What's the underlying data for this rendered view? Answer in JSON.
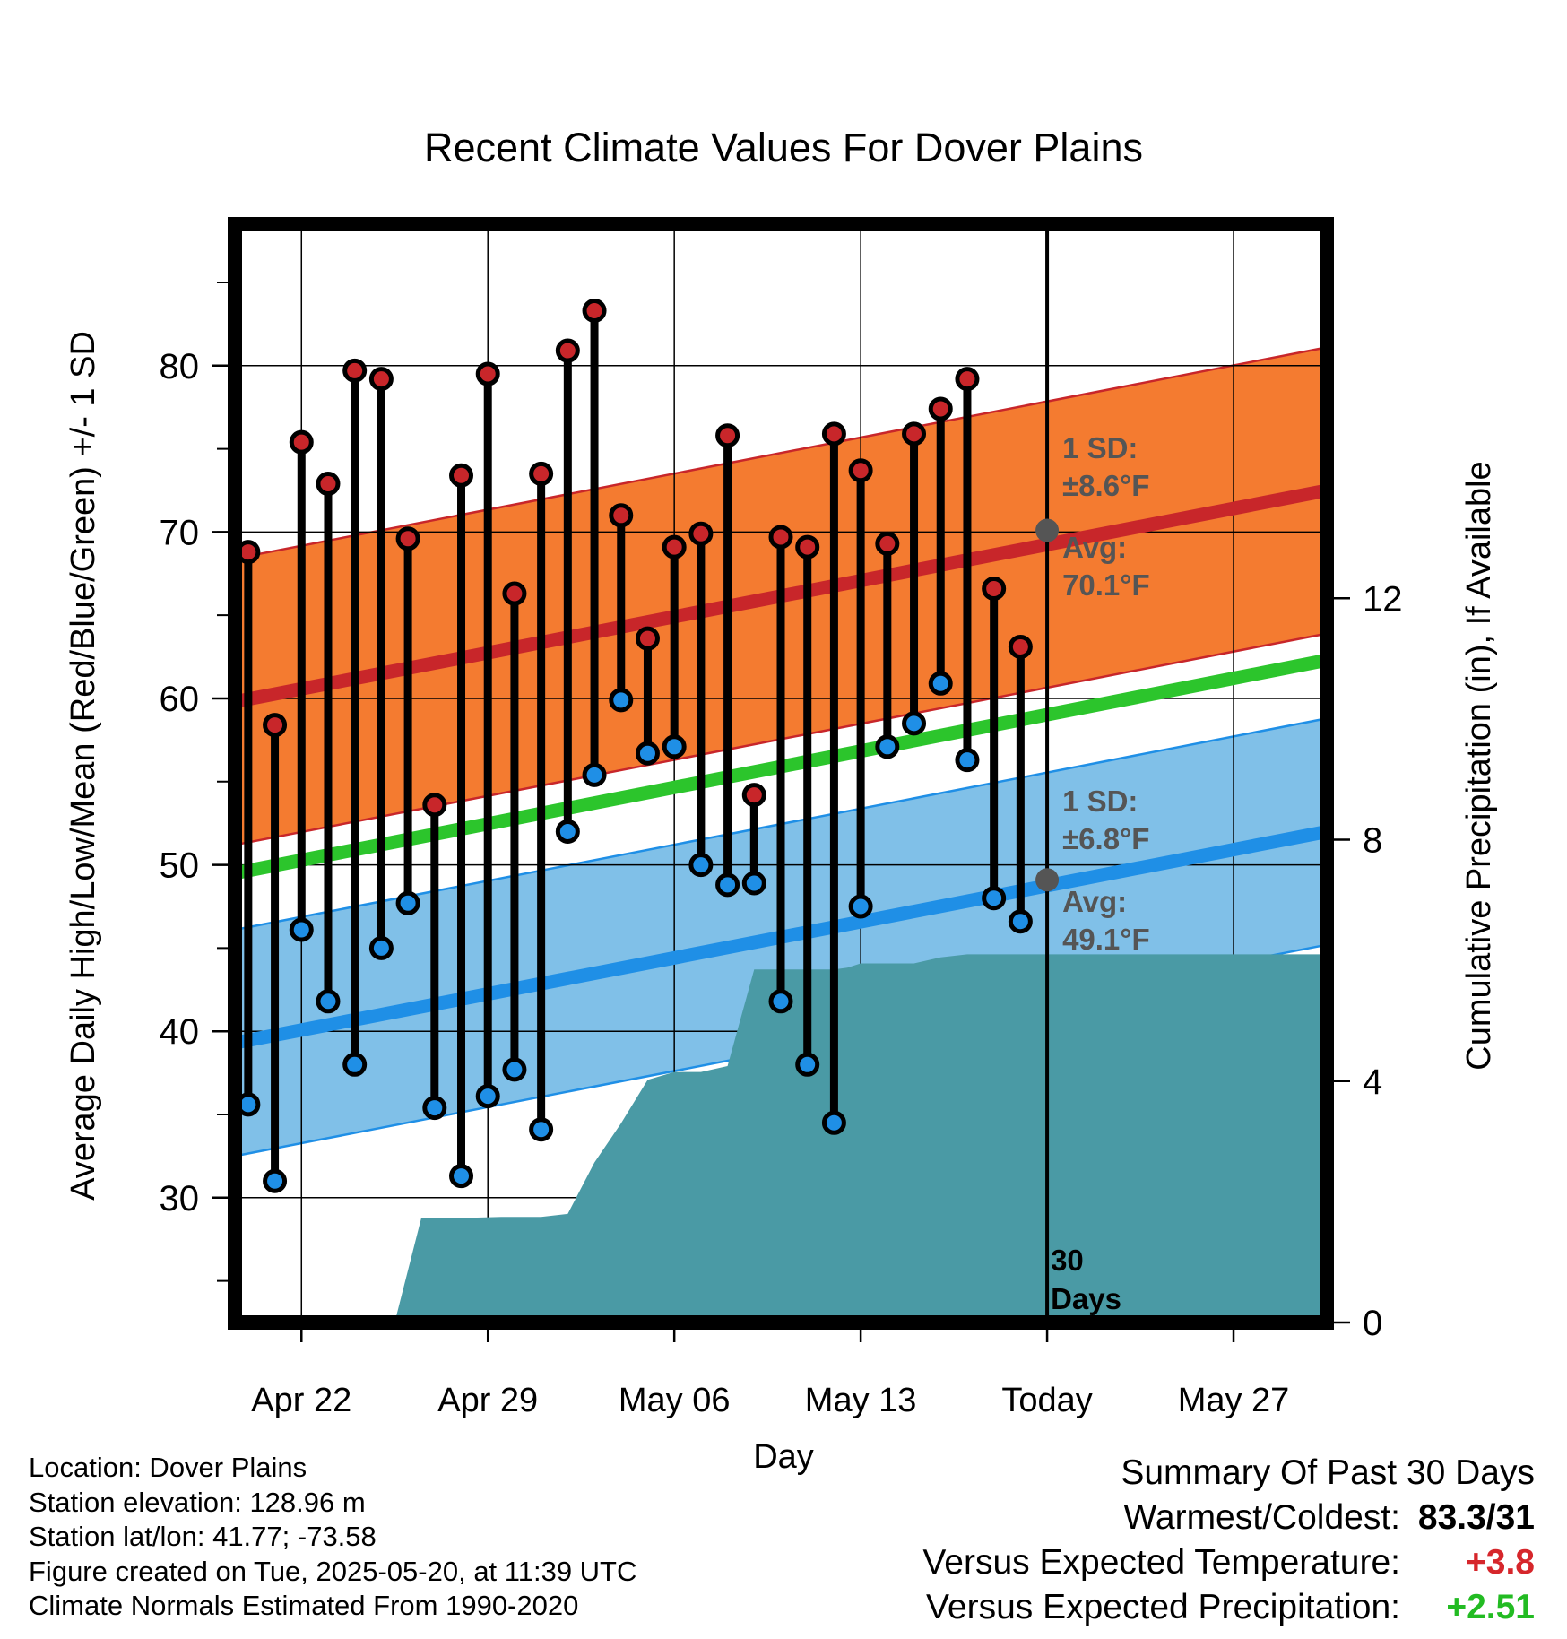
{
  "chart_data": {
    "type": "line",
    "title": "Recent Climate Values For Dover Plains",
    "xlabel": "Day",
    "ylabel": "Average Daily High/Low/Mean (Red/Blue/Green) +/- 1 SD",
    "y2label": "Cumulative Precipitation (in), If Available",
    "x_ticks": [
      "Apr 22",
      "Apr 29",
      "May 06",
      "May 13",
      "Today",
      "May 27"
    ],
    "x_tick_day_offsets": [
      3,
      10,
      17,
      24,
      31,
      38
    ],
    "x_range_days": [
      0.5,
      41.5
    ],
    "today_day_offset": 31,
    "ylim": [
      22.5,
      88.5
    ],
    "y_ticks": [
      30,
      40,
      50,
      60,
      70,
      80
    ],
    "y2lim": [
      0,
      18.2
    ],
    "y2_ticks": [
      0,
      4,
      8,
      12
    ],
    "days": [
      1,
      2,
      3,
      4,
      5,
      6,
      7,
      8,
      9,
      10,
      11,
      12,
      13,
      14,
      15,
      16,
      17,
      18,
      19,
      20,
      21,
      22,
      23,
      24,
      25,
      26,
      27,
      28,
      29,
      30
    ],
    "highs": [
      68.8,
      58.4,
      75.4,
      72.9,
      79.7,
      79.2,
      69.6,
      53.6,
      73.4,
      79.5,
      66.3,
      73.5,
      80.9,
      83.3,
      71.0,
      63.6,
      69.1,
      69.9,
      75.8,
      54.2,
      69.7,
      69.1,
      75.9,
      73.7,
      69.3,
      75.9,
      77.4,
      79.2,
      66.6,
      63.1
    ],
    "lows": [
      35.6,
      31.0,
      46.1,
      41.8,
      38.0,
      45.0,
      47.7,
      35.4,
      31.3,
      36.1,
      37.7,
      34.1,
      52.0,
      55.4,
      59.9,
      56.7,
      57.1,
      50.0,
      48.8,
      48.9,
      41.8,
      38.0,
      34.5,
      47.5,
      57.1,
      58.5,
      60.9,
      56.3,
      48.0,
      46.6
    ],
    "normal_high": {
      "start": 59.8,
      "end": 72.5,
      "sd": 8.6
    },
    "normal_low": {
      "start": 39.3,
      "end": 52.0,
      "sd": 6.8
    },
    "normal_mean": {
      "start": 49.5,
      "end": 62.3
    },
    "precip_cumulative": {
      "day": [
        0.5,
        6.5,
        7.5,
        9.0,
        10.5,
        12.0,
        13.0,
        14.0,
        15.0,
        16.0,
        17.0,
        18.0,
        19.0,
        20.0,
        21.0,
        22.0,
        22.5,
        23.0,
        23.5,
        24.0,
        25.0,
        26.0,
        27.0,
        28.0,
        29.0,
        30.0,
        31.0,
        41.5
      ],
      "inches": [
        0,
        0,
        1.73,
        1.73,
        1.75,
        1.75,
        1.8,
        2.65,
        3.3,
        4.02,
        4.15,
        4.15,
        4.25,
        5.85,
        5.85,
        5.85,
        5.85,
        5.85,
        5.88,
        5.95,
        5.95,
        5.95,
        6.05,
        6.1,
        6.1,
        6.1,
        6.1,
        6.1
      ]
    },
    "series": [
      {
        "name": "Red",
        "color": "#c8262a"
      },
      {
        "name": "Blue",
        "color": "#1f8fe6"
      },
      {
        "name": "Green",
        "color": "#2cc52c"
      }
    ],
    "annotations": {
      "high_sd_line1": "1 SD:",
      "high_sd_line2": "±8.6°F",
      "high_avg_line1": "Avg:",
      "high_avg_line2": "70.1°F",
      "high_avg_value": 70.1,
      "low_sd_line1": "1 SD:",
      "low_sd_line2": "±6.8°F",
      "low_avg_line1": "Avg:",
      "low_avg_line2": "49.1°F",
      "low_avg_value": 49.1,
      "days_line1": "30",
      "days_line2": "Days"
    },
    "colors": {
      "high_band": "#f47b30",
      "low_band": "#80c0e8",
      "precip_fill": "#4a9aa5",
      "marker_high": "#c8262a",
      "marker_low": "#1f8fe6",
      "annotation_text": "#555555"
    }
  },
  "footer": {
    "location": "Location: Dover Plains",
    "elevation": "Station elevation: 128.96 m",
    "latlon": "Station lat/lon: 41.77; -73.58",
    "created": "Figure created on Tue, 2025-05-20, at 11:39 UTC",
    "normals": "Climate Normals Estimated From 1990-2020"
  },
  "summary": {
    "heading": "Summary Of Past 30 Days",
    "warmest_label": "Warmest/Coldest:",
    "warmest_value": "83.3/31",
    "temp_label": "Versus Expected Temperature:",
    "temp_value": "+3.8",
    "precip_label": "Versus Expected Precipitation:",
    "precip_value": "+2.51"
  }
}
